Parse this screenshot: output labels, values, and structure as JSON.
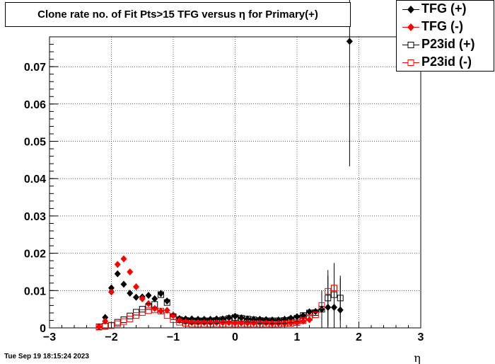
{
  "title": "Clone rate no. of Fit Pts>15 TFG versus η for Primary(+)",
  "timestamp": "Tue Sep 19 18:15:24 2023",
  "legend": [
    {
      "label": "TFG (+)",
      "color": "#000000",
      "marker": "diamond-filled"
    },
    {
      "label": "TFG (-)",
      "color": "#ff0000",
      "marker": "diamond-filled"
    },
    {
      "label": "P23id (+)",
      "color": "#000000",
      "marker": "square-open"
    },
    {
      "label": "P23id (-)",
      "color": "#ff0000",
      "marker": "square-open"
    }
  ],
  "chart_data": {
    "type": "scatter",
    "title": "Clone rate no. of Fit Pts>15 TFG versus η for Primary(+)",
    "xlabel": "η",
    "ylabel": "",
    "xlim": [
      -3,
      3
    ],
    "ylim": [
      0,
      0.078
    ],
    "xticks": [
      "−3",
      "−2",
      "−1",
      "0",
      "1",
      "2",
      "3"
    ],
    "yticks": [
      "0",
      "0.01",
      "0.02",
      "0.03",
      "0.04",
      "0.05",
      "0.06",
      "0.07"
    ],
    "grid": true,
    "legend_position": "top-right",
    "series": [
      {
        "name": "TFG (+)",
        "color": "#000000",
        "marker": "diamond-filled",
        "points": [
          [
            -2.2,
            0.0003
          ],
          [
            -2.1,
            0.0028
          ],
          [
            -2.0,
            0.0107
          ],
          [
            -1.9,
            0.0145
          ],
          [
            -1.8,
            0.0117
          ],
          [
            -1.7,
            0.0093
          ],
          [
            -1.6,
            0.0082
          ],
          [
            -1.5,
            0.0083
          ],
          [
            -1.4,
            0.0087
          ],
          [
            -1.3,
            0.0078
          ],
          [
            -1.2,
            0.0092
          ],
          [
            -1.1,
            0.0072
          ],
          [
            -1.0,
            0.0034
          ],
          [
            -0.9,
            0.0025
          ],
          [
            -0.8,
            0.0024
          ],
          [
            -0.7,
            0.0024
          ],
          [
            -0.6,
            0.0023
          ],
          [
            -0.5,
            0.0023
          ],
          [
            -0.4,
            0.0023
          ],
          [
            -0.3,
            0.0024
          ],
          [
            -0.2,
            0.0024
          ],
          [
            -0.1,
            0.0027
          ],
          [
            0.0,
            0.0031
          ],
          [
            0.1,
            0.0027
          ],
          [
            0.2,
            0.0024
          ],
          [
            0.3,
            0.0023
          ],
          [
            0.4,
            0.0023
          ],
          [
            0.5,
            0.0022
          ],
          [
            0.6,
            0.0021
          ],
          [
            0.7,
            0.0021
          ],
          [
            0.8,
            0.0023
          ],
          [
            0.9,
            0.0026
          ],
          [
            1.0,
            0.003
          ],
          [
            1.1,
            0.0033
          ],
          [
            1.2,
            0.0043
          ],
          [
            1.3,
            0.0044
          ],
          [
            1.4,
            0.005
          ],
          [
            1.5,
            0.0055
          ],
          [
            1.6,
            0.0055
          ],
          [
            1.7,
            0.0048
          ],
          [
            1.85,
            0.0768
          ]
        ],
        "errors": [
          [
            1.5,
            0.0085
          ],
          [
            1.6,
            0.011
          ],
          [
            1.7,
            0.0085
          ],
          [
            1.85,
            0.0335
          ]
        ]
      },
      {
        "name": "TFG (-)",
        "color": "#ff0000",
        "marker": "diamond-filled",
        "points": [
          [
            -2.2,
            0.0003
          ],
          [
            -2.1,
            0.0018
          ],
          [
            -2.0,
            0.0096
          ],
          [
            -1.9,
            0.017
          ],
          [
            -1.8,
            0.0185
          ],
          [
            -1.7,
            0.015
          ],
          [
            -1.6,
            0.011
          ],
          [
            -1.5,
            0.0078
          ],
          [
            -1.4,
            0.0065
          ],
          [
            -1.3,
            0.0052
          ],
          [
            -1.2,
            0.0045
          ],
          [
            -1.1,
            0.0047
          ],
          [
            -1.0,
            0.0033
          ],
          [
            -0.9,
            0.002
          ],
          [
            -0.8,
            0.0016
          ],
          [
            -0.7,
            0.0014
          ],
          [
            -0.6,
            0.0014
          ],
          [
            -0.5,
            0.0014
          ],
          [
            -0.4,
            0.0014
          ],
          [
            -0.3,
            0.0014
          ],
          [
            -0.2,
            0.0014
          ],
          [
            -0.1,
            0.0014
          ],
          [
            0.0,
            0.0013
          ],
          [
            0.1,
            0.0013
          ],
          [
            0.2,
            0.0013
          ],
          [
            0.3,
            0.0013
          ],
          [
            0.4,
            0.0013
          ],
          [
            0.5,
            0.0013
          ],
          [
            0.6,
            0.0012
          ],
          [
            0.7,
            0.0012
          ],
          [
            0.8,
            0.0012
          ],
          [
            0.9,
            0.0013
          ],
          [
            1.0,
            0.0014
          ],
          [
            1.1,
            0.0018
          ],
          [
            1.2,
            0.0022
          ]
        ]
      },
      {
        "name": "P23id (+)",
        "color": "#000000",
        "marker": "square-open",
        "points": [
          [
            -2.2,
            0.0003
          ],
          [
            -2.1,
            0.0005
          ],
          [
            -2.0,
            0.0007
          ],
          [
            -1.9,
            0.0015
          ],
          [
            -1.8,
            0.0022
          ],
          [
            -1.7,
            0.0032
          ],
          [
            -1.6,
            0.0042
          ],
          [
            -1.5,
            0.005
          ],
          [
            -1.4,
            0.0057
          ],
          [
            -1.3,
            0.0063
          ],
          [
            -1.2,
            0.0089
          ],
          [
            -1.1,
            0.0068
          ],
          [
            -1.0,
            0.003
          ],
          [
            -0.9,
            0.0022
          ],
          [
            -0.8,
            0.002
          ],
          [
            -0.7,
            0.0019
          ],
          [
            -0.6,
            0.0019
          ],
          [
            -0.5,
            0.0019
          ],
          [
            -0.4,
            0.0019
          ],
          [
            -0.3,
            0.002
          ],
          [
            -0.2,
            0.0022
          ],
          [
            -0.1,
            0.0025
          ],
          [
            0.0,
            0.0028
          ],
          [
            0.1,
            0.0026
          ],
          [
            0.2,
            0.0024
          ],
          [
            0.3,
            0.0022
          ],
          [
            0.4,
            0.002
          ],
          [
            0.5,
            0.0019
          ],
          [
            0.6,
            0.0019
          ],
          [
            0.7,
            0.0019
          ],
          [
            0.8,
            0.002
          ],
          [
            0.9,
            0.0022
          ],
          [
            1.0,
            0.0026
          ],
          [
            1.1,
            0.0033
          ],
          [
            1.2,
            0.004
          ],
          [
            1.3,
            0.0041
          ],
          [
            1.4,
            0.005
          ],
          [
            1.5,
            0.008
          ],
          [
            1.6,
            0.0089
          ],
          [
            1.7,
            0.008
          ]
        ],
        "errors": [
          [
            1.4,
            0.005
          ],
          [
            1.5,
            0.0075
          ],
          [
            1.6,
            0.0085
          ],
          [
            1.7,
            0.006
          ]
        ]
      },
      {
        "name": "P23id (-)",
        "color": "#ff0000",
        "marker": "square-open",
        "points": [
          [
            -2.2,
            0.0002
          ],
          [
            -2.1,
            0.0004
          ],
          [
            -2.0,
            0.0006
          ],
          [
            -1.9,
            0.0011
          ],
          [
            -1.8,
            0.0017
          ],
          [
            -1.7,
            0.0024
          ],
          [
            -1.6,
            0.0033
          ],
          [
            -1.5,
            0.0041
          ],
          [
            -1.4,
            0.0046
          ],
          [
            -1.3,
            0.0048
          ],
          [
            -1.2,
            0.0045
          ],
          [
            -1.1,
            0.0033
          ],
          [
            -1.0,
            0.0022
          ],
          [
            -0.9,
            0.0015
          ],
          [
            -0.8,
            0.0012
          ],
          [
            -0.7,
            0.001
          ],
          [
            -0.6,
            0.001
          ],
          [
            -0.5,
            0.001
          ],
          [
            -0.4,
            0.001
          ],
          [
            -0.3,
            0.001
          ],
          [
            -0.2,
            0.001
          ],
          [
            -0.1,
            0.001
          ],
          [
            0.0,
            0.001
          ],
          [
            0.1,
            0.001
          ],
          [
            0.2,
            0.001
          ],
          [
            0.3,
            0.001
          ],
          [
            0.4,
            0.001
          ],
          [
            0.5,
            0.001
          ],
          [
            0.6,
            0.001
          ],
          [
            0.7,
            0.001
          ],
          [
            0.8,
            0.0011
          ],
          [
            0.9,
            0.0012
          ],
          [
            1.0,
            0.0014
          ],
          [
            1.1,
            0.002
          ],
          [
            1.2,
            0.0028
          ],
          [
            1.3,
            0.0035
          ],
          [
            1.4,
            0.006
          ],
          [
            1.5,
            0.0098
          ],
          [
            1.6,
            0.0107
          ]
        ]
      }
    ]
  }
}
